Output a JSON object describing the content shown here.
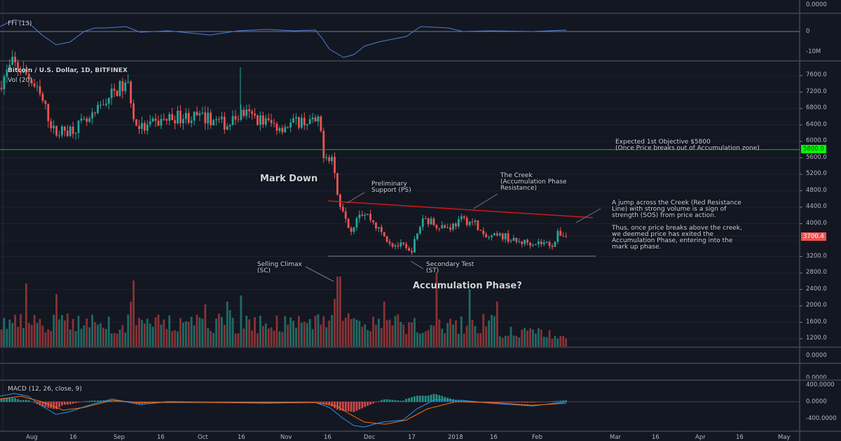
{
  "panes": {
    "top_axis_value": "0.0000",
    "ffi": {
      "label": "FFI (13)",
      "axis": [
        "0",
        "-10M"
      ]
    },
    "main": {
      "title": "Bitcoin / U.S. Dollar, 1D, BITFINEX",
      "volume_label": "Vol (20)"
    },
    "empty_axis_value": "0.0000",
    "pane2_axis_value": "0.0000",
    "macd": {
      "label": "MACD (12, 26, close, 9)",
      "axis": [
        "400.0000",
        "0.0000",
        "-400.0000"
      ]
    }
  },
  "price_tags": {
    "objective": "5800.0",
    "last": "3700.4"
  },
  "colors": {
    "up": "#26a69a",
    "down": "#ef5350",
    "objective_line": "#00c800",
    "objective_tag": "#00ff00",
    "creek": "#d01818",
    "ffi": "#4a7fd6",
    "macd": "#2196f3",
    "signal": "#ff6d00"
  },
  "annotations": {
    "mark_down": "Mark Down",
    "ps": "Preliminary\nSupport (PS)",
    "creek": "The Creek\n(Accumulation Phase\nResistance)",
    "sc": "Selling Climax\n(SC)",
    "st": "Secondary Test\n(ST)",
    "accumulation": "Accumulation Phase?",
    "objective": "Expected 1st Objective $5800\n(Once Price breaks out of Accumulation zone)",
    "sos": "A jump across the Creek (Red Resistance\nLine) with strong volume is a sign of\nstrength (SOS) from price action.\n\nThus, once price breaks above the creek,\nwe deemed price has exited the\nAccumulation Phase, entering into the\nmark up phase."
  },
  "chart_data": {
    "type": "candlestick",
    "title": "Bitcoin / U.S. Dollar, 1D, BITFINEX",
    "y_ticks": [
      7600,
      7200,
      6800,
      6400,
      6000,
      5600,
      5200,
      4800,
      4400,
      4000,
      3600,
      3200,
      2800,
      2400,
      2000,
      1600,
      1200
    ],
    "ylim": [
      1000,
      7900
    ],
    "x_ticks": [
      "Aug",
      "16",
      "Sep",
      "16",
      "Oct",
      "16",
      "Nov",
      "16",
      "Dec",
      "17",
      "2018",
      "16",
      "Feb",
      "Mar",
      "16",
      "Apr",
      "16",
      "May"
    ],
    "approx_close_path": [
      {
        "date": "Jul 20",
        "close": 7400
      },
      {
        "date": "Jul 25",
        "close": 7900
      },
      {
        "date": "Aug 5",
        "close": 7000
      },
      {
        "date": "Aug 10",
        "close": 6300
      },
      {
        "date": "Aug 14",
        "close": 6100
      },
      {
        "date": "Aug 28",
        "close": 7000
      },
      {
        "date": "Sep 5",
        "close": 7300
      },
      {
        "date": "Sep 8",
        "close": 6400
      },
      {
        "date": "Sep 20",
        "close": 6500
      },
      {
        "date": "Oct 5",
        "close": 6600
      },
      {
        "date": "Oct 15",
        "close": 6500
      },
      {
        "date": "Oct 20",
        "close": 6600
      },
      {
        "date": "Nov 1",
        "close": 6350
      },
      {
        "date": "Nov 14",
        "close": 6400
      },
      {
        "date": "Nov 15",
        "close": 5700
      },
      {
        "date": "Nov 20",
        "close": 4500
      },
      {
        "date": "Nov 25",
        "close": 3800
      },
      {
        "date": "Dec 10",
        "close": 3400
      },
      {
        "date": "Dec 15",
        "close": 3250
      },
      {
        "date": "Dec 20",
        "close": 3900
      },
      {
        "date": "Jan 5",
        "close": 4000
      },
      {
        "date": "Jan 10",
        "close": 3650
      },
      {
        "date": "Feb 5",
        "close": 3450
      },
      {
        "date": "Feb 8",
        "close": 3700
      }
    ],
    "horizontal_levels": [
      {
        "label": "Expected 1st Objective",
        "value": 5800
      },
      {
        "label": "support",
        "value": 3200
      }
    ],
    "creek_line": {
      "from": {
        "date": "Nov 16",
        "value": 4550
      },
      "to": {
        "date": "Mar 1",
        "value": 4150
      }
    }
  }
}
